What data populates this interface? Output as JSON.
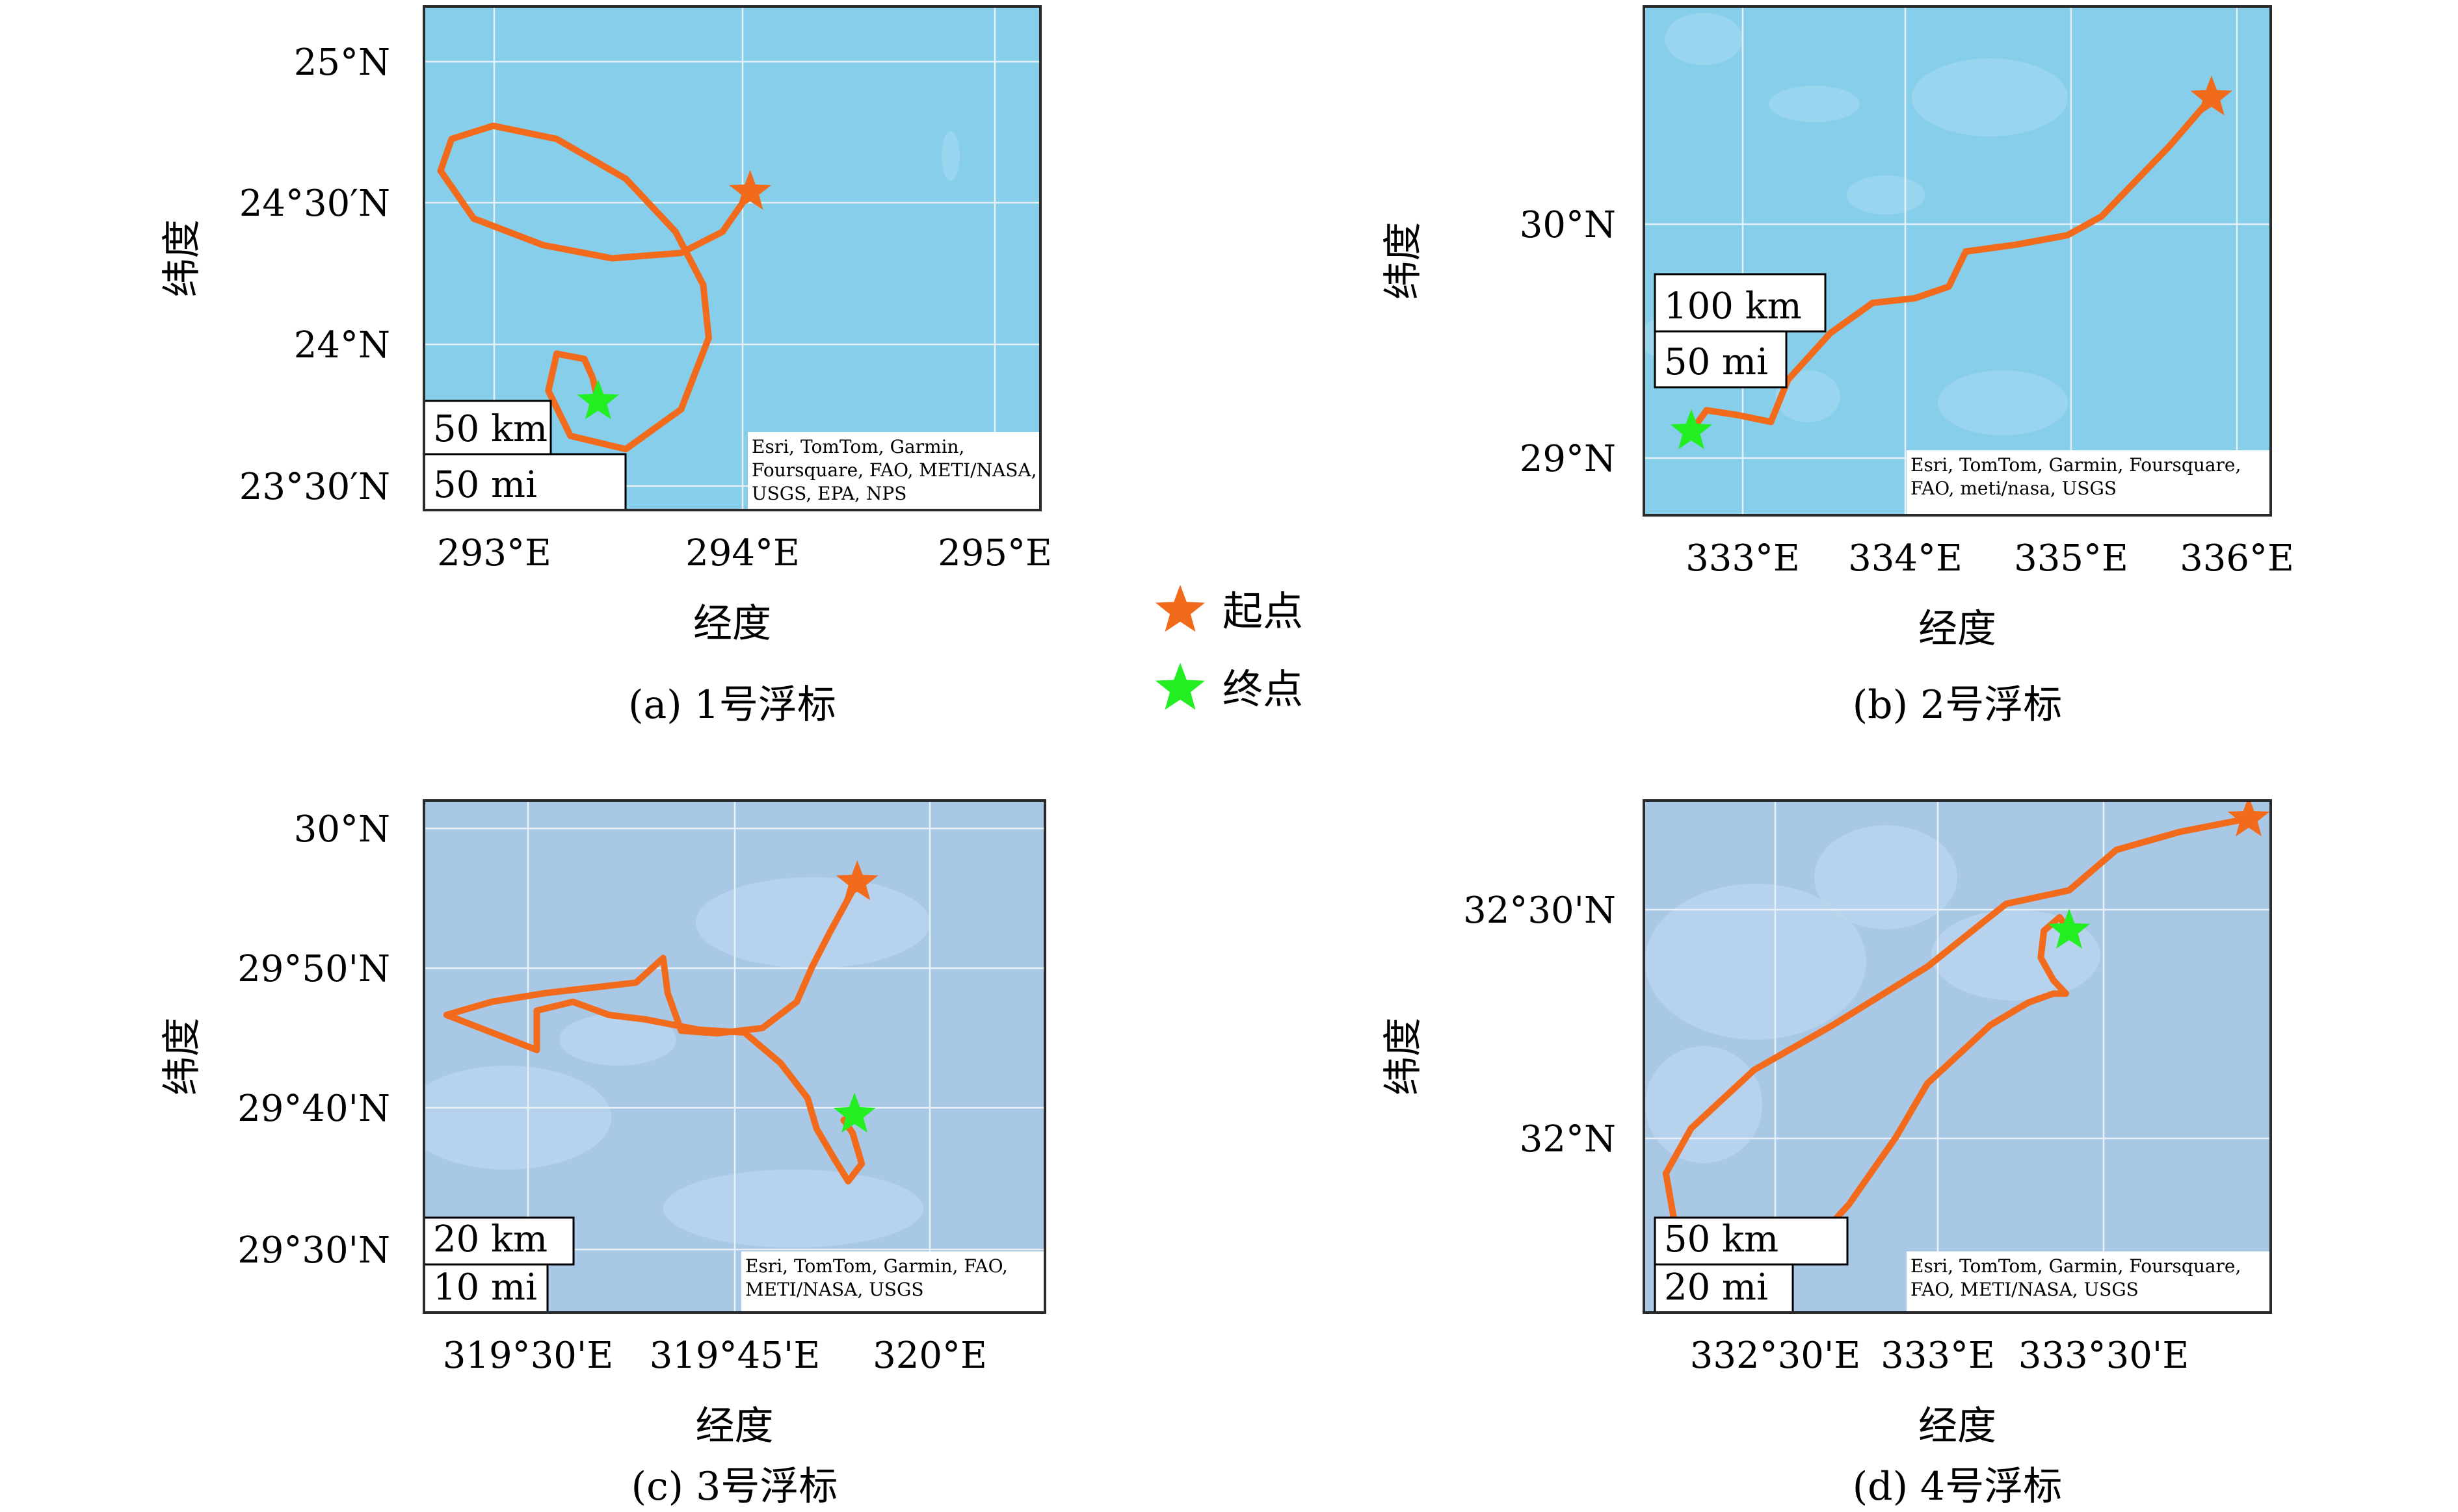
{
  "legend": {
    "start": "起点",
    "end": "终点"
  },
  "colors": {
    "track": "#f26a1b",
    "start": "#f26a1b",
    "end": "#22ee22",
    "water_a": "#87ceeb",
    "water_b": "#a9c8e6",
    "grid": "#e6f0f6"
  },
  "panels": [
    {
      "caption": "(a) 1号浮标",
      "xlabel": "经度",
      "ylabel": "纬度",
      "xticks": [
        "293°E",
        "294°E",
        "295°E"
      ],
      "yticks": [
        "25°N",
        "24°30′N",
        "24°N",
        "23°30′N"
      ],
      "scale_km": "50 km",
      "scale_mi": "50 mi",
      "attribution": [
        "Esri, TomTom, Garmin,",
        "Foursquare, FAO, METI/NASA,",
        "USGS, EPA, NPS"
      ],
      "lon_range": [
        292.87,
        295.1
      ],
      "lat_range": [
        23.45,
        25.35
      ],
      "track": [
        [
          294.05,
          24.65
        ],
        [
          293.95,
          24.5
        ],
        [
          293.8,
          24.42
        ],
        [
          293.55,
          24.4
        ],
        [
          293.3,
          24.45
        ],
        [
          293.05,
          24.55
        ],
        [
          292.93,
          24.73
        ],
        [
          292.97,
          24.85
        ],
        [
          293.12,
          24.9
        ],
        [
          293.35,
          24.85
        ],
        [
          293.6,
          24.7
        ],
        [
          293.78,
          24.5
        ],
        [
          293.88,
          24.3
        ],
        [
          293.9,
          24.1
        ],
        [
          293.8,
          23.83
        ],
        [
          293.6,
          23.68
        ],
        [
          293.4,
          23.73
        ],
        [
          293.32,
          23.9
        ],
        [
          293.35,
          24.04
        ],
        [
          293.45,
          24.02
        ],
        [
          293.48,
          23.95
        ],
        [
          293.5,
          23.86
        ]
      ]
    },
    {
      "caption": "(b) 2号浮标",
      "xlabel": "经度",
      "ylabel": "纬度",
      "xticks": [
        "333°E",
        "334°E",
        "335°E",
        "336°E"
      ],
      "yticks": [
        "30°N",
        "29°N"
      ],
      "scale_km": "100 km",
      "scale_mi": "50 mi",
      "attribution": [
        "Esri, TomTom, Garmin, Foursquare,",
        "FAO, meti/nasa, USGS"
      ],
      "lon_range": [
        332.5,
        336.2
      ],
      "lat_range": [
        28.77,
        30.95
      ],
      "track": [
        [
          335.85,
          30.56
        ],
        [
          335.6,
          30.35
        ],
        [
          335.4,
          30.2
        ],
        [
          335.2,
          30.05
        ],
        [
          335.0,
          29.97
        ],
        [
          334.7,
          29.93
        ],
        [
          334.4,
          29.9
        ],
        [
          334.3,
          29.75
        ],
        [
          334.1,
          29.7
        ],
        [
          333.85,
          29.68
        ],
        [
          333.6,
          29.55
        ],
        [
          333.35,
          29.35
        ],
        [
          333.25,
          29.17
        ],
        [
          333.05,
          29.2
        ],
        [
          332.87,
          29.22
        ],
        [
          332.78,
          29.13
        ]
      ]
    },
    {
      "caption": "(c) 3号浮标",
      "xlabel": "经度",
      "ylabel": "纬度",
      "xticks": [
        "319°30'E",
        "319°45'E",
        "320°E"
      ],
      "yticks": [
        "30°N",
        "29°50'N",
        "29°40'N",
        "29°30'N"
      ],
      "scale_km": "20 km",
      "scale_mi": "10 mi",
      "attribution": [
        "Esri, TomTom, Garmin, FAO,",
        "METI/NASA, USGS"
      ],
      "lon_range": [
        319.395,
        320.083
      ],
      "lat_range": [
        29.435,
        30.02
      ],
      "track": [
        [
          319.875,
          29.9265
        ],
        [
          319.862,
          29.902
        ],
        [
          319.845,
          29.87
        ],
        [
          319.825,
          29.83
        ],
        [
          319.808,
          29.79
        ],
        [
          319.77,
          29.76
        ],
        [
          319.72,
          29.754
        ],
        [
          319.68,
          29.757
        ],
        [
          319.665,
          29.8
        ],
        [
          319.66,
          29.84
        ],
        [
          319.63,
          29.812
        ],
        [
          319.58,
          29.806
        ],
        [
          319.53,
          29.8
        ],
        [
          319.47,
          29.79
        ],
        [
          319.42,
          29.775
        ],
        [
          319.47,
          29.755
        ],
        [
          319.52,
          29.735
        ],
        [
          319.52,
          29.78
        ],
        [
          319.56,
          29.79
        ],
        [
          319.6,
          29.775
        ],
        [
          319.64,
          29.77
        ],
        [
          319.7,
          29.758
        ],
        [
          319.75,
          29.755
        ],
        [
          319.79,
          29.72
        ],
        [
          319.82,
          29.68
        ],
        [
          319.83,
          29.645
        ],
        [
          319.85,
          29.61
        ],
        [
          319.865,
          29.585
        ],
        [
          319.88,
          29.605
        ],
        [
          319.87,
          29.64
        ],
        [
          319.86,
          29.655
        ],
        [
          319.872,
          29.661
        ]
      ]
    },
    {
      "caption": "(d) 4号浮标",
      "xlabel": "经度",
      "ylabel": "纬度",
      "xticks": [
        "332°30'E",
        "333°E",
        "333°30'E"
      ],
      "yticks": [
        "32°30'N",
        "32°N"
      ],
      "scale_km": "50 km",
      "scale_mi": "20 mi",
      "attribution": [
        "Esri, TomTom, Garmin, Foursquare,",
        "FAO, METI/NASA, USGS"
      ],
      "lon_range": [
        332.0,
        333.99
      ],
      "lat_range": [
        31.61,
        32.75
      ],
      "track": [
        [
          333.92,
          32.71
        ],
        [
          333.7,
          32.68
        ],
        [
          333.5,
          32.64
        ],
        [
          333.35,
          32.55
        ],
        [
          333.15,
          32.52
        ],
        [
          332.9,
          32.38
        ],
        [
          332.6,
          32.25
        ],
        [
          332.35,
          32.15
        ],
        [
          332.15,
          32.02
        ],
        [
          332.07,
          31.92
        ],
        [
          332.1,
          31.8
        ],
        [
          332.25,
          31.72
        ],
        [
          332.4,
          31.73
        ],
        [
          332.52,
          31.75
        ],
        [
          332.65,
          31.85
        ],
        [
          332.8,
          32.0
        ],
        [
          332.9,
          32.12
        ],
        [
          333.1,
          32.25
        ],
        [
          333.22,
          32.3
        ],
        [
          333.3,
          32.32
        ],
        [
          333.34,
          32.32
        ],
        [
          333.3,
          32.35
        ],
        [
          333.26,
          32.4
        ],
        [
          333.27,
          32.46
        ],
        [
          333.32,
          32.49
        ],
        [
          333.35,
          32.46
        ]
      ]
    }
  ]
}
